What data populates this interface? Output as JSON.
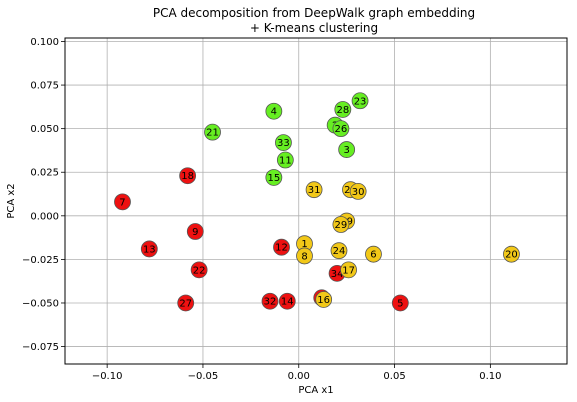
{
  "chart_data": {
    "type": "scatter",
    "title": "PCA decomposition from DeepWalk graph embedding\n+ K-means clustering",
    "xlabel": "PCA x1",
    "ylabel": "PCA x2",
    "xlim": [
      -0.122,
      0.14
    ],
    "ylim": [
      -0.085,
      0.102
    ],
    "x_ticks": [
      -0.1,
      -0.05,
      0.0,
      0.05,
      0.1
    ],
    "x_tick_labels": [
      "−0.10",
      "−0.05",
      "0.00",
      "0.05",
      "0.10"
    ],
    "y_ticks": [
      -0.075,
      -0.05,
      -0.025,
      0.0,
      0.025,
      0.05,
      0.075,
      0.1
    ],
    "y_tick_labels": [
      "−0.075",
      "−0.050",
      "−0.025",
      "0.000",
      "0.025",
      "0.050",
      "0.075",
      "0.100"
    ],
    "grid": true,
    "cluster_colors": {
      "green": "#66ee22",
      "red": "#ee1111",
      "yellow": "#f2c818"
    },
    "points": [
      {
        "label": "4",
        "x": -0.013,
        "y": 0.06,
        "cluster": "green"
      },
      {
        "label": "21",
        "x": -0.045,
        "y": 0.048,
        "cluster": "green"
      },
      {
        "label": "28",
        "x": 0.023,
        "y": 0.061,
        "cluster": "green"
      },
      {
        "label": "23",
        "x": 0.032,
        "y": 0.066,
        "cluster": "green"
      },
      {
        "label": "2",
        "x": 0.019,
        "y": 0.052,
        "cluster": "green"
      },
      {
        "label": "26",
        "x": 0.022,
        "y": 0.05,
        "cluster": "green"
      },
      {
        "label": "33",
        "x": -0.008,
        "y": 0.042,
        "cluster": "green"
      },
      {
        "label": "3",
        "x": 0.025,
        "y": 0.038,
        "cluster": "green"
      },
      {
        "label": "11",
        "x": -0.007,
        "y": 0.032,
        "cluster": "green"
      },
      {
        "label": "15",
        "x": -0.013,
        "y": 0.022,
        "cluster": "green"
      },
      {
        "label": "18",
        "x": -0.058,
        "y": 0.023,
        "cluster": "red"
      },
      {
        "label": "7",
        "x": -0.092,
        "y": 0.008,
        "cluster": "red"
      },
      {
        "label": "9",
        "x": -0.054,
        "y": -0.009,
        "cluster": "red"
      },
      {
        "label": "13",
        "x": -0.078,
        "y": -0.019,
        "cluster": "red"
      },
      {
        "label": "12",
        "x": -0.009,
        "y": -0.018,
        "cluster": "red"
      },
      {
        "label": "22",
        "x": -0.052,
        "y": -0.031,
        "cluster": "red"
      },
      {
        "label": "34",
        "x": 0.02,
        "y": -0.033,
        "cluster": "red"
      },
      {
        "label": "27",
        "x": -0.059,
        "y": -0.05,
        "cluster": "red"
      },
      {
        "label": "32",
        "x": -0.015,
        "y": -0.049,
        "cluster": "red"
      },
      {
        "label": "14",
        "x": -0.006,
        "y": -0.049,
        "cluster": "red"
      },
      {
        "label": "10",
        "x": 0.012,
        "y": -0.047,
        "cluster": "red"
      },
      {
        "label": "5",
        "x": 0.053,
        "y": -0.05,
        "cluster": "red"
      },
      {
        "label": "31",
        "x": 0.008,
        "y": 0.015,
        "cluster": "yellow"
      },
      {
        "label": "25",
        "x": 0.027,
        "y": 0.015,
        "cluster": "yellow"
      },
      {
        "label": "30",
        "x": 0.031,
        "y": 0.014,
        "cluster": "yellow"
      },
      {
        "label": "19",
        "x": 0.025,
        "y": -0.003,
        "cluster": "yellow"
      },
      {
        "label": "29",
        "x": 0.022,
        "y": -0.005,
        "cluster": "yellow"
      },
      {
        "label": "1",
        "x": 0.003,
        "y": -0.016,
        "cluster": "yellow"
      },
      {
        "label": "8",
        "x": 0.003,
        "y": -0.023,
        "cluster": "yellow"
      },
      {
        "label": "24",
        "x": 0.021,
        "y": -0.02,
        "cluster": "yellow"
      },
      {
        "label": "6",
        "x": 0.039,
        "y": -0.022,
        "cluster": "yellow"
      },
      {
        "label": "17",
        "x": 0.026,
        "y": -0.031,
        "cluster": "yellow"
      },
      {
        "label": "16",
        "x": 0.013,
        "y": -0.048,
        "cluster": "yellow"
      },
      {
        "label": "20",
        "x": 0.111,
        "y": -0.022,
        "cluster": "yellow"
      }
    ]
  }
}
